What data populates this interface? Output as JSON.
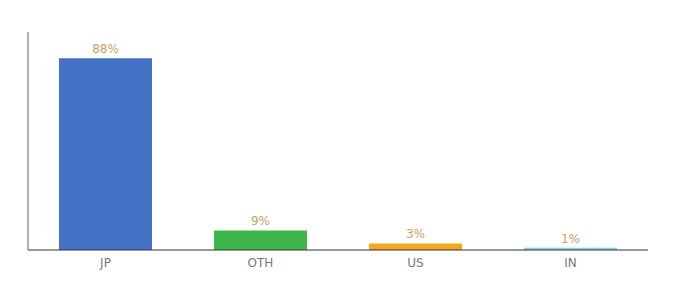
{
  "chart_data": {
    "type": "bar",
    "categories": [
      "JP",
      "OTH",
      "US",
      "IN"
    ],
    "values": [
      88,
      9,
      3,
      1
    ],
    "value_labels": [
      "88%",
      "9%",
      "3%",
      "1%"
    ],
    "data_labels": true,
    "colors": [
      "#4472c4",
      "#3cb54a",
      "#f5a623",
      "#87ceeb"
    ],
    "ylim": [
      0,
      100
    ],
    "tick_labels": "x",
    "grid": false
  }
}
